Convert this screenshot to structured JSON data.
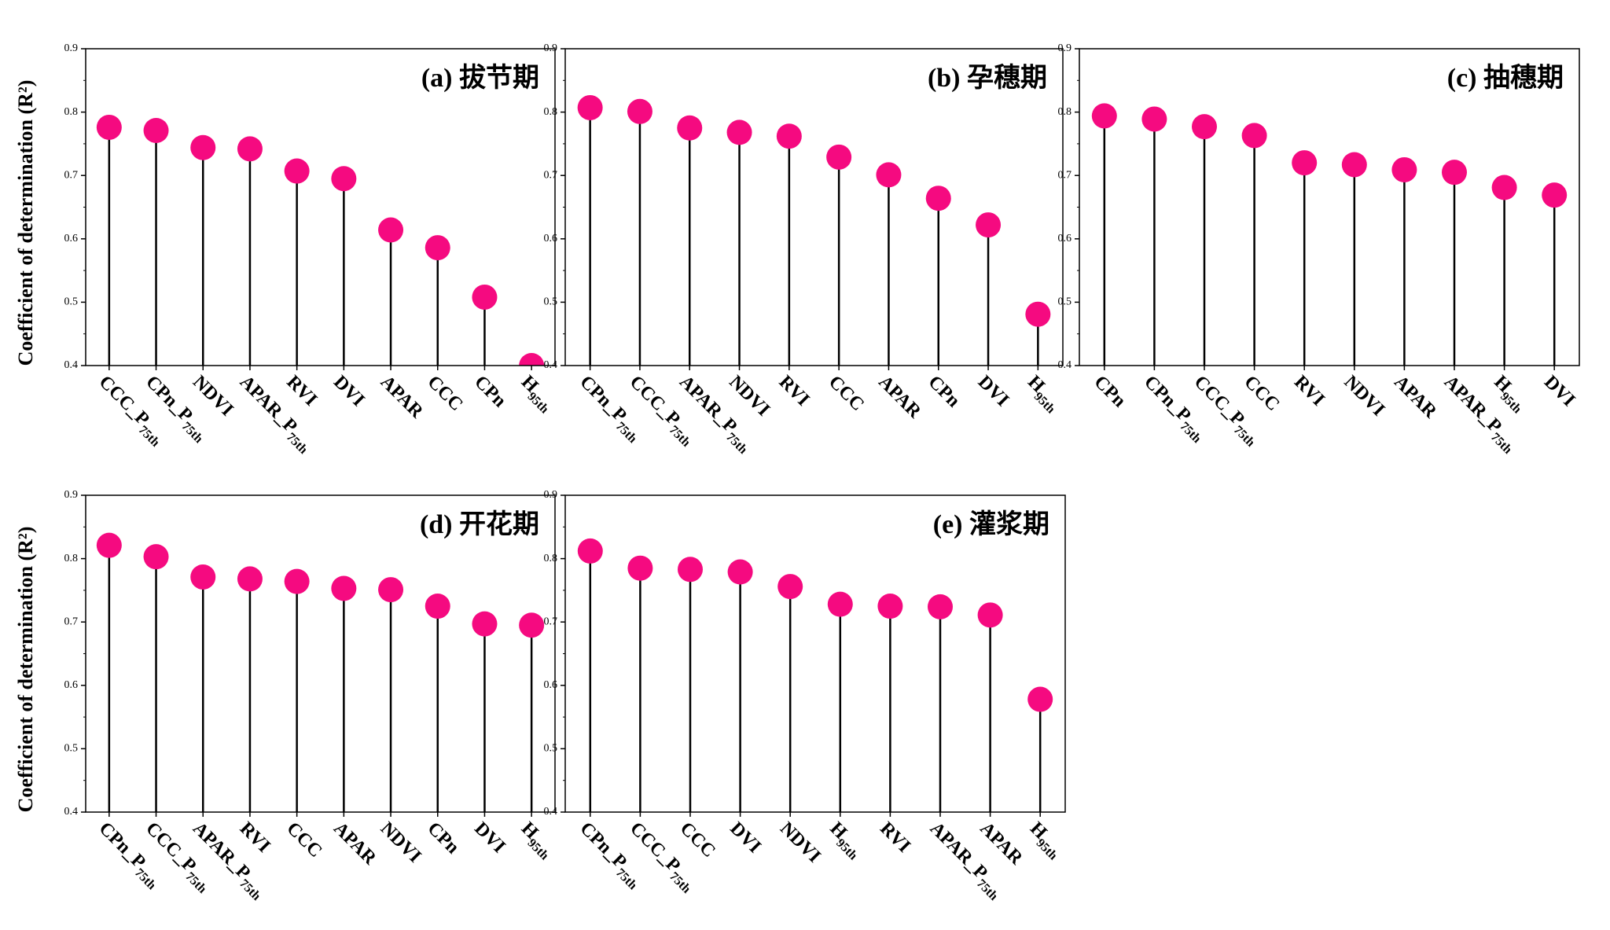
{
  "chart_data": [
    {
      "type": "lollipop",
      "title": "(a) 拔节期",
      "y_label": "Coefficient of determination (R²)",
      "categories": [
        "CCC_P75th",
        "CPn_P75th",
        "NDVI",
        "APAR_P75th",
        "RVI",
        "DVI",
        "APAR",
        "CCC",
        "CPn",
        "H95th"
      ],
      "values": [
        0.776,
        0.771,
        0.744,
        0.742,
        0.707,
        0.695,
        0.614,
        0.586,
        0.508,
        0.4
      ],
      "color": "#f50a80",
      "ylim": [
        0.4,
        0.9
      ],
      "yticks": [
        0.4,
        0.5,
        0.6,
        0.7,
        0.8,
        0.9
      ]
    },
    {
      "type": "lollipop",
      "title": "(b) 孕穗期",
      "categories": [
        "CPn_P75th",
        "CCC_P75th",
        "APAR_P75th",
        "NDVI",
        "RVI",
        "CCC",
        "APAR",
        "CPn",
        "DVI",
        "H95th"
      ],
      "values": [
        0.807,
        0.801,
        0.775,
        0.768,
        0.762,
        0.729,
        0.701,
        0.664,
        0.622,
        0.481
      ],
      "color": "#f50a80",
      "ylim": [
        0.4,
        0.9
      ],
      "yticks": [
        0.4,
        0.5,
        0.6,
        0.7,
        0.8,
        0.9
      ]
    },
    {
      "type": "lollipop",
      "title": "(c) 抽穗期",
      "categories": [
        "CPn",
        "CPn_P75th",
        "CCC_P75th",
        "CCC",
        "RVI",
        "NDVI",
        "APAR",
        "APAR_P75th",
        "H95th",
        "DVI"
      ],
      "values": [
        0.794,
        0.789,
        0.777,
        0.763,
        0.72,
        0.717,
        0.709,
        0.705,
        0.681,
        0.669
      ],
      "color": "#f50a80",
      "ylim": [
        0.4,
        0.9
      ],
      "yticks": [
        0.4,
        0.5,
        0.6,
        0.7,
        0.8,
        0.9
      ]
    },
    {
      "type": "lollipop",
      "title": "(d) 开花期",
      "y_label": "Coefficient of determination (R²)",
      "categories": [
        "CPn_P75th",
        "CCC_P75th",
        "APAR_P75th",
        "RVI",
        "CCC",
        "APAR",
        "NDVI",
        "CPn",
        "DVI",
        "H95th"
      ],
      "values": [
        0.821,
        0.803,
        0.771,
        0.768,
        0.764,
        0.753,
        0.751,
        0.725,
        0.697,
        0.695
      ],
      "color": "#f50a80",
      "ylim": [
        0.4,
        0.9
      ],
      "yticks": [
        0.4,
        0.5,
        0.6,
        0.7,
        0.8,
        0.9
      ]
    },
    {
      "type": "lollipop",
      "title": "(e) 灌浆期",
      "categories": [
        "CPn_P75th",
        "CCC_P75th",
        "CCC",
        "DVI",
        "NDVI",
        "H95th",
        "RVI",
        "APAR_P75th",
        "APAR",
        "H95th"
      ],
      "values": [
        0.812,
        0.785,
        0.783,
        0.779,
        0.756,
        0.728,
        0.725,
        0.724,
        0.711,
        0.578
      ],
      "color": "#f50a80",
      "ylim": [
        0.4,
        0.9
      ],
      "yticks": [
        0.4,
        0.5,
        0.6,
        0.7,
        0.8,
        0.9
      ]
    }
  ]
}
